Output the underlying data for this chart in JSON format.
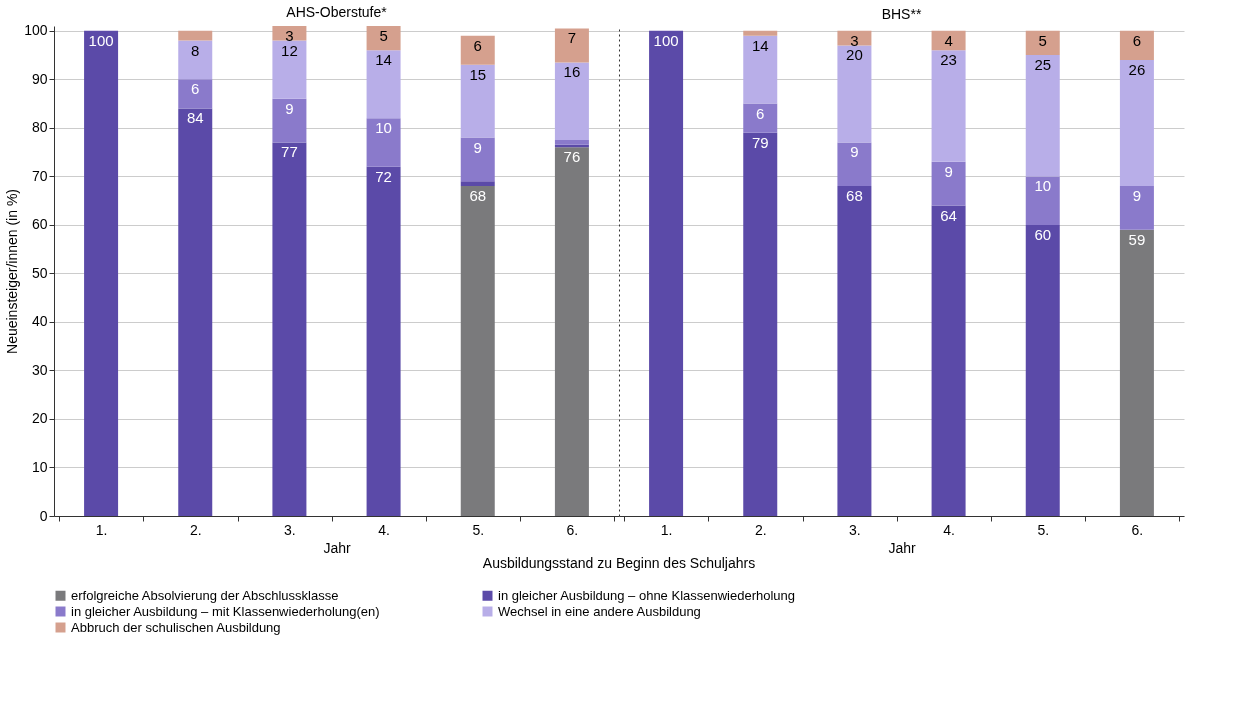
{
  "chart_data": [
    {
      "type": "bar",
      "stacked": true,
      "title": "AHS-Oberstufe*",
      "xlabel": "Jahr",
      "ylabel": "Neueinsteiger/innen (in %)",
      "categories": [
        "1.",
        "2.",
        "3.",
        "4.",
        "5.",
        "6."
      ],
      "ylim": [
        0,
        101
      ],
      "yticks": [
        0,
        10,
        20,
        30,
        40,
        50,
        60,
        70,
        80,
        90,
        100
      ],
      "grid": "y",
      "legend": "bottom",
      "annotations": [
        "Ausbildungsstand zu Beginn des Schuljahrs"
      ],
      "series": [
        {
          "name": "erfolgreiche Absolvierung der Abschlussklasse",
          "color": "#7a7a7c",
          "values": [
            null,
            null,
            null,
            null,
            68,
            76
          ],
          "value_labels": [
            null,
            null,
            null,
            null,
            "68",
            "76"
          ]
        },
        {
          "name": "in gleicher Ausbildung – ohne Klassenwiederholung",
          "color": "#5b4aa8",
          "values": [
            100,
            84,
            77,
            72,
            1,
            0.5
          ],
          "value_labels": [
            "100",
            "84",
            "77",
            "72",
            null,
            null
          ]
        },
        {
          "name": "in gleicher Ausbildung – mit Klassenwiederholung(en)",
          "color": "#8a7acb",
          "values": [
            null,
            6,
            9,
            10,
            9,
            1
          ],
          "value_labels": [
            null,
            "6",
            "9",
            "10",
            "9",
            null
          ]
        },
        {
          "name": "Wechsel in eine andere Ausbildung",
          "color": "#b8aee8",
          "values": [
            null,
            8,
            12,
            14,
            15,
            16
          ],
          "value_labels": [
            null,
            "8",
            "12",
            "14",
            "15",
            "16"
          ]
        },
        {
          "name": "Abbruch der schulischen Ausbildung",
          "color": "#d5a08e",
          "values": [
            null,
            2,
            3,
            5,
            6,
            7
          ],
          "value_labels": [
            null,
            null,
            "3",
            "5",
            "6",
            "7"
          ]
        }
      ]
    },
    {
      "type": "bar",
      "stacked": true,
      "title": "BHS**",
      "xlabel": "Jahr",
      "categories": [
        "1.",
        "2.",
        "3.",
        "4.",
        "5.",
        "6."
      ],
      "ylim": [
        0,
        101
      ],
      "yticks": [
        0,
        10,
        20,
        30,
        40,
        50,
        60,
        70,
        80,
        90,
        100
      ],
      "grid": "y",
      "tick_labels": "x",
      "series": [
        {
          "name": "erfolgreiche Absolvierung der Abschlussklasse",
          "color": "#7a7a7c",
          "values": [
            null,
            null,
            null,
            null,
            null,
            59
          ],
          "value_labels": [
            null,
            null,
            null,
            null,
            null,
            "59"
          ]
        },
        {
          "name": "in gleicher Ausbildung – ohne Klassenwiederholung",
          "color": "#5b4aa8",
          "values": [
            100,
            79,
            68,
            64,
            60,
            null
          ],
          "value_labels": [
            "100",
            "79",
            "68",
            "64",
            "60",
            null
          ]
        },
        {
          "name": "in gleicher Ausbildung – mit Klassenwiederholung(en)",
          "color": "#8a7acb",
          "values": [
            null,
            6,
            9,
            9,
            10,
            9
          ],
          "value_labels": [
            null,
            "6",
            "9",
            "9",
            "10",
            "9"
          ]
        },
        {
          "name": "Wechsel in eine andere Ausbildung",
          "color": "#b8aee8",
          "values": [
            null,
            14,
            20,
            23,
            25,
            26
          ],
          "value_labels": [
            null,
            "14",
            "20",
            "23",
            "25",
            "26"
          ]
        },
        {
          "name": "Abbruch der schulischen Ausbildung",
          "color": "#d5a08e",
          "values": [
            null,
            1,
            3,
            4,
            5,
            6
          ],
          "value_labels": [
            null,
            null,
            "3",
            "4",
            "5",
            "6"
          ]
        }
      ]
    }
  ]
}
